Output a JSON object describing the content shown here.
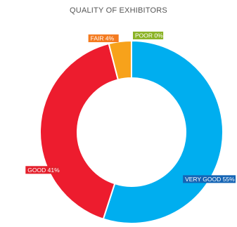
{
  "chart_data": {
    "type": "pie",
    "title": "QUALITY OF EXHIBITORS",
    "categories": [
      "VERY GOOD",
      "GOOD",
      "FAIR",
      "POOR"
    ],
    "values": [
      55,
      41,
      4,
      0
    ],
    "labels": [
      "VERY GOOD 55%",
      "GOOD 41%",
      "FAIR 4%",
      "POOR 0%"
    ],
    "colors": [
      "#00aeef",
      "#ed1c2e",
      "#f7a21b",
      "#8cb327"
    ],
    "label_colors": [
      "#1565b5",
      "#e41f2b",
      "#f47b20",
      "#8cb327"
    ],
    "donut": true
  }
}
